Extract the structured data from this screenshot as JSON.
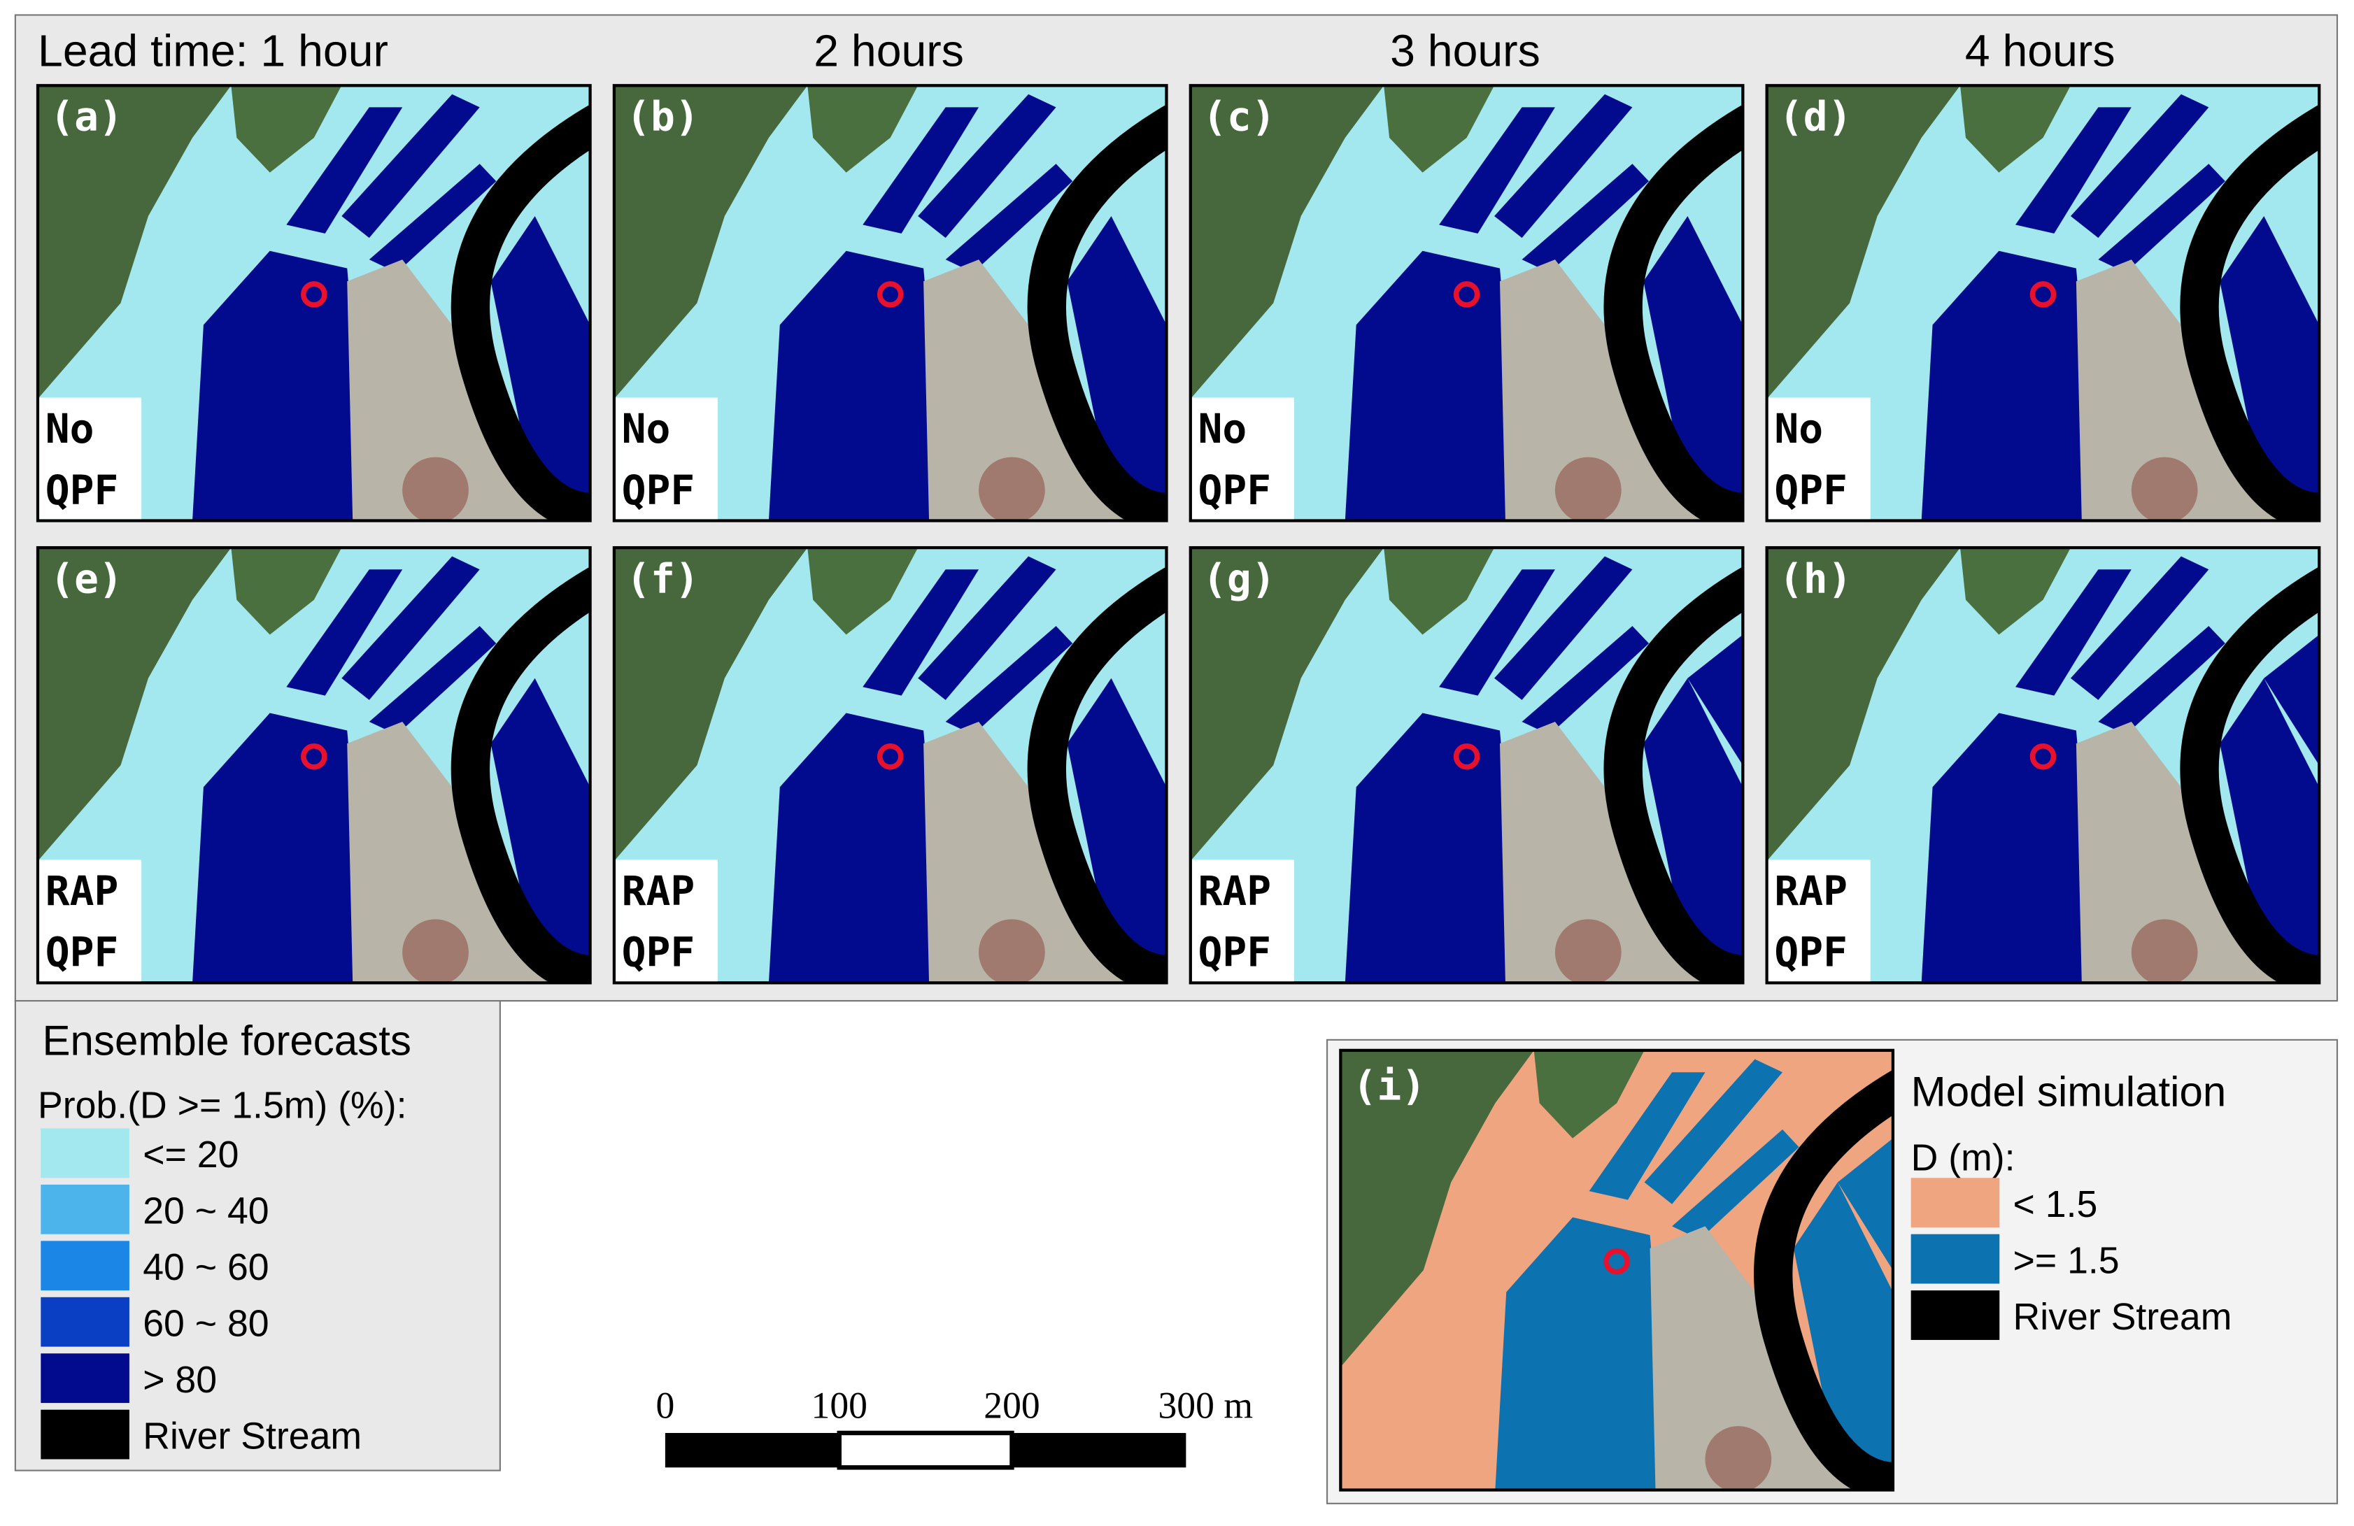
{
  "header": {
    "lead_time_labels": [
      "Lead time: 1 hour",
      "2 hours",
      "3 hours",
      "4 hours"
    ]
  },
  "panels": [
    {
      "label": "(a)",
      "method": [
        "No",
        "QPF"
      ]
    },
    {
      "label": "(b)",
      "method": [
        "No",
        "QPF"
      ]
    },
    {
      "label": "(c)",
      "method": [
        "No",
        "QPF"
      ]
    },
    {
      "label": "(d)",
      "method": [
        "No",
        "QPF"
      ]
    },
    {
      "label": "(e)",
      "method": [
        "RAP",
        "QPF"
      ]
    },
    {
      "label": "(f)",
      "method": [
        "RAP",
        "QPF"
      ]
    },
    {
      "label": "(g)",
      "method": [
        "RAP",
        "QPF"
      ]
    },
    {
      "label": "(h)",
      "method": [
        "RAP",
        "QPF"
      ]
    }
  ],
  "ensemble_legend": {
    "title": "Ensemble forecasts",
    "subtitle": "Prob.(D >= 1.5m) (%):",
    "items": [
      {
        "label": "<= 20",
        "color": "#a3e8ee"
      },
      {
        "label": "20 ~ 40",
        "color": "#4cb4ea"
      },
      {
        "label": "40 ~ 60",
        "color": "#1b86e6"
      },
      {
        "label": "60 ~ 80",
        "color": "#0a3fc4"
      },
      {
        "label": "> 80",
        "color": "#020b8e"
      },
      {
        "label": "River Stream",
        "color": "#000000"
      }
    ]
  },
  "model_legend": {
    "panel_label": "(i)",
    "title": "Model simulation",
    "subtitle": "D (m):",
    "items": [
      {
        "label": "< 1.5",
        "color": "#f0a581"
      },
      {
        "label": ">= 1.5",
        "color": "#0c72b0"
      },
      {
        "label": "River Stream",
        "color": "#000000"
      }
    ]
  },
  "scale_bar": {
    "labels": [
      "0",
      "100",
      "200",
      "300 m"
    ]
  }
}
